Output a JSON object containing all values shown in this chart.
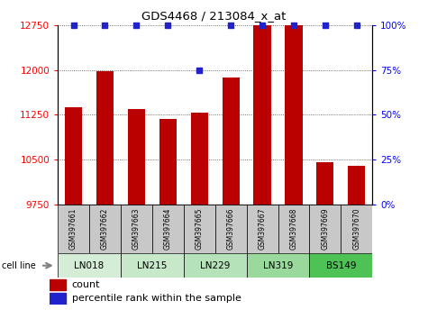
{
  "title": "GDS4468 / 213084_x_at",
  "samples": [
    "GSM397661",
    "GSM397662",
    "GSM397663",
    "GSM397664",
    "GSM397665",
    "GSM397666",
    "GSM397667",
    "GSM397668",
    "GSM397669",
    "GSM397670"
  ],
  "counts": [
    11380,
    11990,
    11340,
    11175,
    11285,
    11880,
    12750,
    12750,
    10460,
    10390
  ],
  "percentile_ranks": [
    100,
    100,
    100,
    100,
    75,
    100,
    100,
    100,
    100,
    100
  ],
  "cell_line_groups": [
    {
      "name": "LN018",
      "start": 0,
      "end": 1,
      "color": "#d5ecd6"
    },
    {
      "name": "LN215",
      "start": 2,
      "end": 3,
      "color": "#c8e8ca"
    },
    {
      "name": "LN229",
      "start": 4,
      "end": 5,
      "color": "#b5e2b8"
    },
    {
      "name": "LN319",
      "start": 6,
      "end": 7,
      "color": "#99d99c"
    },
    {
      "name": "BS149",
      "start": 8,
      "end": 9,
      "color": "#4ec254"
    }
  ],
  "bar_color": "#bb0000",
  "dot_color": "#2222cc",
  "ylim_left": [
    9750,
    12750
  ],
  "ylim_right": [
    0,
    100
  ],
  "yticks_left": [
    9750,
    10500,
    11250,
    12000,
    12750
  ],
  "yticks_right": [
    0,
    25,
    50,
    75,
    100
  ],
  "bar_width": 0.55,
  "label_count": "count",
  "label_percentile": "percentile rank within the sample",
  "sample_box_color": "#c8c8c8"
}
